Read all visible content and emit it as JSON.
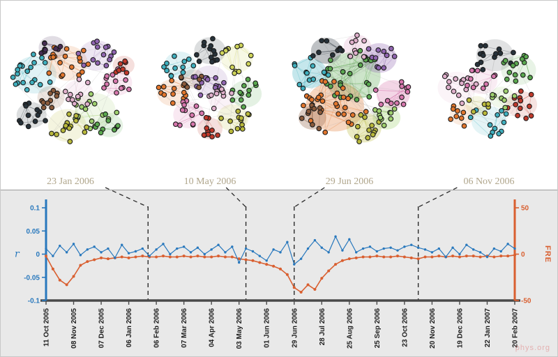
{
  "figure": {
    "watermark": "phys.org",
    "caption_color": "#b0a68c"
  },
  "networks": {
    "captions": [
      "23 Jan 2006",
      "10 May 2006",
      "29 Jun 2006",
      "06 Nov 2006"
    ],
    "palette": [
      "#3fb0bf",
      "#e2762d",
      "#9065b0",
      "#5aa84f",
      "#d777ad",
      "#b9b93b",
      "#472d54",
      "#c0392b",
      "#8a5a3b",
      "#27323a",
      "#9fd06e",
      "#e0b0cc",
      "#cfd45a"
    ]
  },
  "chart_data": {
    "type": "line",
    "title": "",
    "background": "#e9e9e9",
    "x_tick_labels": [
      "11 Oct 2005",
      "08 Nov 2005",
      "07 Dec 2005",
      "06 Jan 2006",
      "06 Feb 2006",
      "07 Mar 2006",
      "04 Apr 2006",
      "03 May 2006",
      "01 Jun 2006",
      "29 Jun 2006",
      "28 Jul 2006",
      "25 Aug 2006",
      "25 Sep 2006",
      "23 Oct 2006",
      "20 Nov 2006",
      "19 Dec 2006",
      "22 Jan 2007",
      "20 Feb 2007"
    ],
    "points_per_label_interval": 4,
    "left_axis": {
      "label": "r",
      "color": "#2878bd",
      "ticks": [
        0.1,
        0.05,
        0,
        -0.05,
        -0.1
      ],
      "range": [
        -0.1,
        0.1
      ]
    },
    "right_axis": {
      "label": "FRE",
      "color": "#d95f30",
      "ticks": [
        50,
        0,
        -50
      ],
      "range": [
        -50,
        50
      ]
    },
    "series": [
      {
        "name": "FRE",
        "axis": "right",
        "color": "#d95f30",
        "values": [
          -2,
          -16,
          -28,
          -33,
          -24,
          -12,
          -8,
          -6,
          -4,
          -5,
          -4,
          -3,
          -4,
          -3,
          -2,
          -3,
          -3,
          -2,
          -3,
          -3,
          -2,
          -3,
          -2,
          -3,
          -3,
          -2,
          -3,
          -3,
          -5,
          -6,
          -7,
          -9,
          -11,
          -13,
          -16,
          -22,
          -36,
          -41,
          -33,
          -38,
          -26,
          -18,
          -11,
          -7,
          -5,
          -4,
          -3,
          -3,
          -2,
          -3,
          -3,
          -2,
          -3,
          -4,
          -5,
          -3,
          -3,
          -2,
          -3,
          -2,
          -3,
          -2,
          -2,
          -3,
          -2,
          -3,
          -2,
          -2,
          -1
        ]
      },
      {
        "name": "r",
        "axis": "left",
        "color": "#2878bd",
        "values": [
          0.012,
          -0.004,
          0.018,
          0.004,
          0.022,
          -0.002,
          0.01,
          0.016,
          0.004,
          0.012,
          -0.008,
          0.02,
          0.002,
          0.006,
          0.012,
          -0.004,
          0.01,
          0.022,
          0.0,
          0.012,
          0.016,
          0.004,
          0.014,
          0.0,
          0.01,
          0.02,
          0.004,
          0.016,
          -0.018,
          0.012,
          0.006,
          -0.004,
          -0.014,
          0.01,
          0.004,
          0.026,
          -0.022,
          -0.01,
          0.012,
          0.03,
          0.014,
          0.004,
          0.038,
          0.008,
          0.032,
          0.004,
          0.012,
          0.016,
          0.006,
          0.012,
          0.014,
          0.008,
          0.016,
          0.02,
          0.014,
          0.01,
          0.004,
          0.012,
          -0.006,
          0.014,
          0.0,
          0.02,
          0.01,
          0.004,
          -0.006,
          0.012,
          0.006,
          0.022,
          0.012
        ]
      }
    ],
    "snapshot_marker_indices": [
      14.8,
      29,
      36,
      54
    ],
    "legend_position": "none",
    "grid": false
  }
}
